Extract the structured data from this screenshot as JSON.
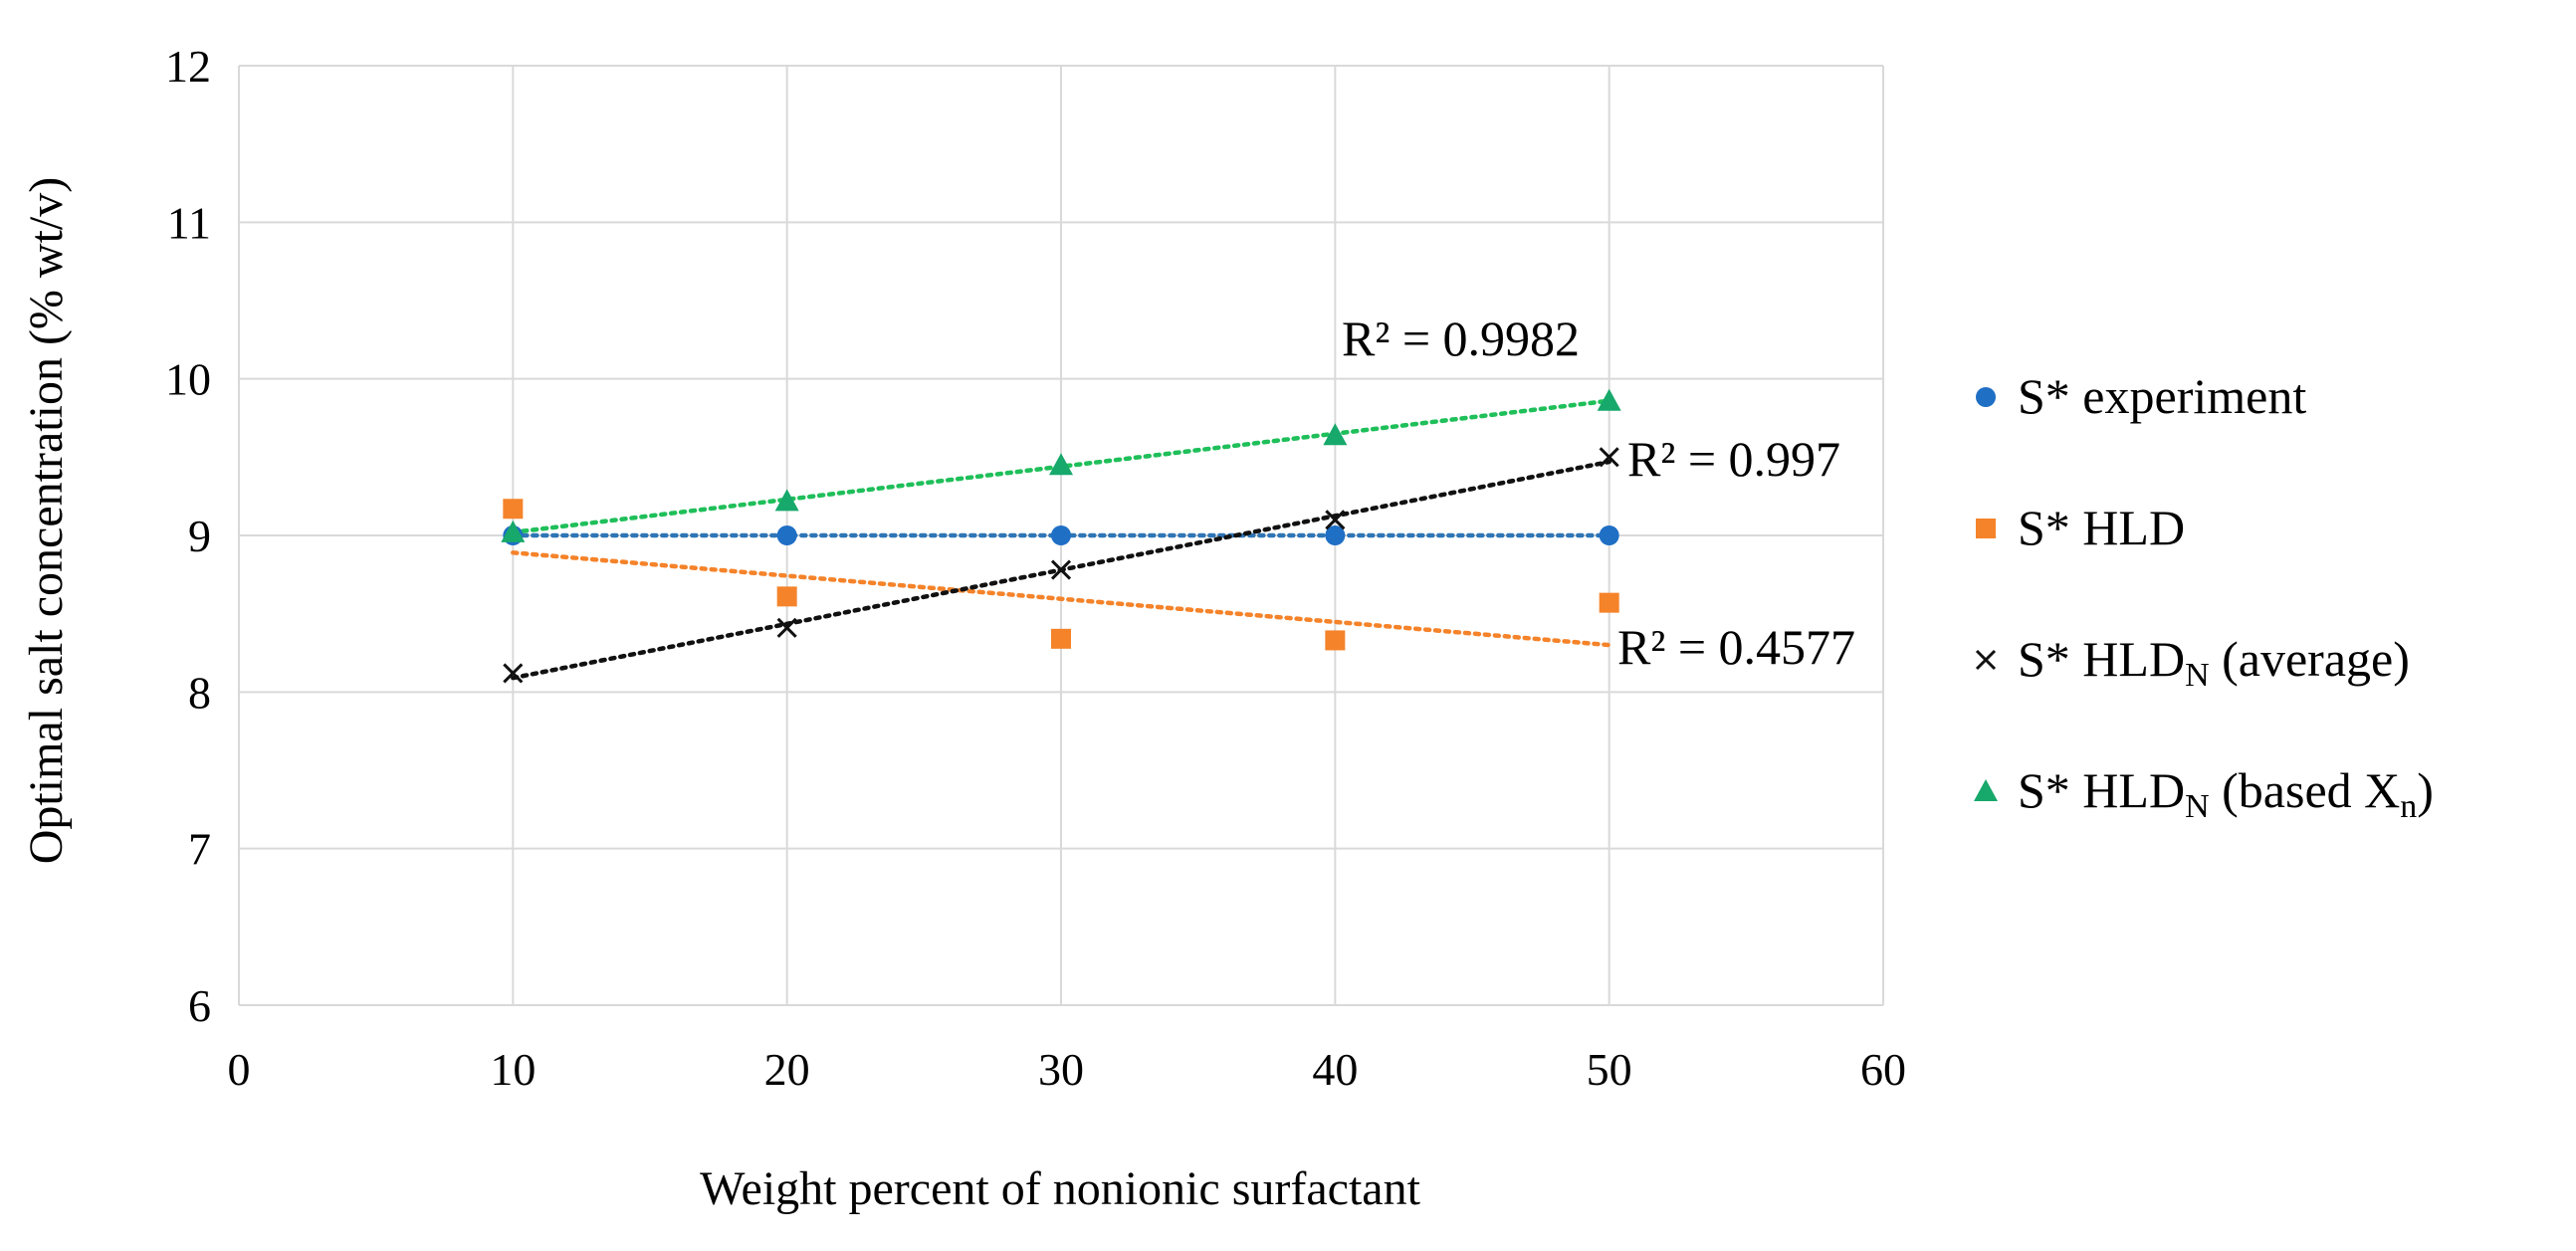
{
  "chart_data": {
    "type": "scatter",
    "title": "",
    "xlabel": "Weight percent of nonionic surfactant",
    "ylabel": "Optimal salt concentration (% wt/v)",
    "xlim": [
      0,
      60
    ],
    "ylim": [
      6,
      12
    ],
    "xticks": [
      0,
      10,
      20,
      30,
      40,
      50,
      60
    ],
    "yticks": [
      6,
      7,
      8,
      9,
      10,
      11,
      12
    ],
    "grid": true,
    "legend_position": "right",
    "series": [
      {
        "name": "S* experiment",
        "name_sub": "",
        "name_tail": "",
        "marker": "circle",
        "color": "#1f6fc5",
        "x": [
          10,
          20,
          30,
          40,
          50
        ],
        "y": [
          9.0,
          9.0,
          9.0,
          9.0,
          9.0
        ],
        "trendline": {
          "x": [
            10,
            50
          ],
          "y": [
            9.0,
            9.0
          ]
        },
        "r2_label": ""
      },
      {
        "name": "S* HLD",
        "name_sub": "",
        "name_tail": "",
        "marker": "square",
        "color": "#f5832a",
        "x": [
          10,
          20,
          30,
          40,
          50
        ],
        "y": [
          9.17,
          8.61,
          8.34,
          8.33,
          8.57
        ],
        "trendline": {
          "x": [
            10,
            50
          ],
          "y": [
            8.89,
            8.3
          ]
        },
        "r2_label": "R² = 0.4577"
      },
      {
        "name": "S* HLD",
        "name_sub": "N",
        "name_tail": " (average)",
        "marker": "x",
        "color": "#111111",
        "x": [
          10,
          20,
          30,
          40,
          50
        ],
        "y": [
          8.12,
          8.41,
          8.78,
          9.1,
          9.5
        ],
        "trendline": {
          "x": [
            10,
            50
          ],
          "y": [
            8.09,
            9.47
          ]
        },
        "r2_label": "R² = 0.997"
      },
      {
        "name": "S* HLD",
        "name_sub": "N",
        "name_tail": " (based X",
        "name_tail_sub": "n",
        "name_tail_end": ")",
        "marker": "triangle",
        "color": "#17a86b",
        "x": [
          10,
          20,
          30,
          40,
          50
        ],
        "y": [
          9.02,
          9.22,
          9.45,
          9.64,
          9.86
        ],
        "trendline": {
          "x": [
            10,
            50
          ],
          "y": [
            9.02,
            9.86
          ]
        },
        "r2_label": "R² = 0.9982"
      }
    ]
  },
  "colors": {
    "grid": "#d9d9d9",
    "trend_blue": "#2e75b6",
    "trend_orange": "#f5832a",
    "trend_black": "#111111",
    "trend_green": "#1fbf5a"
  }
}
